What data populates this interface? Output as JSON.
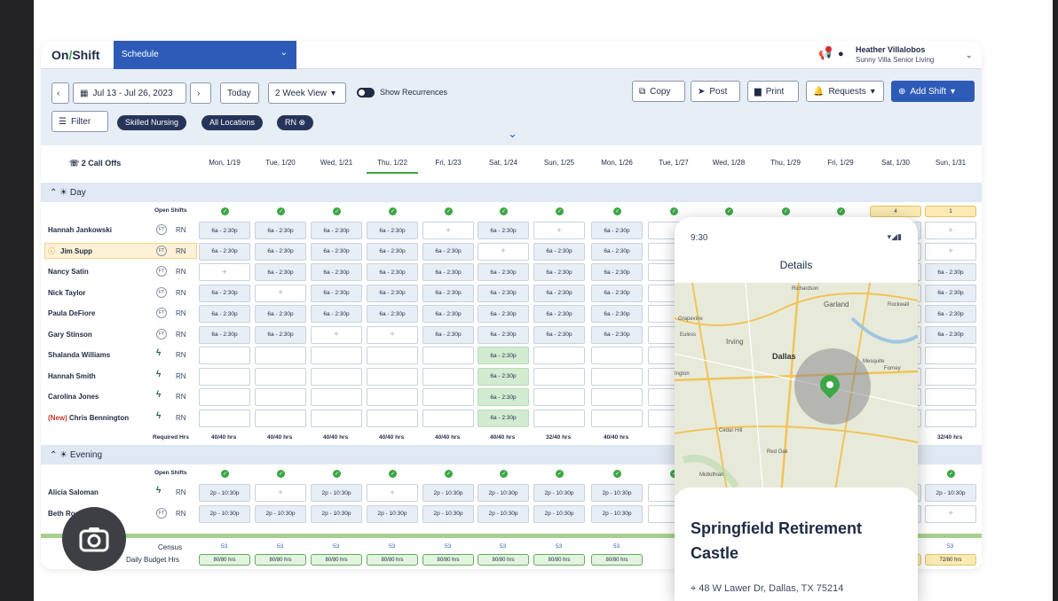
{
  "app": {
    "logo_left": "On",
    "logo_slash": "/",
    "logo_right": "Shift",
    "module": "Schedule"
  },
  "user": {
    "name": "Heather Villalobos",
    "location": "Sunny Villa Senior Living"
  },
  "toolbar": {
    "date_range": "Jul 13 - Jul 26, 2023",
    "today": "Today",
    "view": "2 Week View",
    "show_recurrences": "Show Recurrences",
    "copy": "Copy",
    "post": "Post",
    "print": "Print",
    "requests": "Requests",
    "add_shift": "Add Shift",
    "filter": "Filter"
  },
  "filters": [
    "Skilled Nursing",
    "All Locations",
    "RN"
  ],
  "header": {
    "call_offs": "2 Call Offs",
    "days": [
      "Mon, 1/19",
      "Tue, 1/20",
      "Wed, 1/21",
      "Thu, 1/22",
      "Fri, 1/23",
      "Sat, 1/24",
      "Sun, 1/25",
      "Mon, 1/26",
      "Tue, 1/27",
      "Wed, 1/28",
      "Thu, 1/29",
      "Fri, 1/29",
      "Sat, 1/30",
      "Sun, 1/31"
    ]
  },
  "day_section": {
    "title": "Day",
    "open_shifts": "Open Shifts",
    "open_counts": [
      "4",
      "1"
    ],
    "required_hrs_label": "Required Hrs",
    "staff": [
      {
        "name": "Hannah Jankowski",
        "type": "FT",
        "role": "RN",
        "cells": [
          "6a - 2:30p",
          "6a - 2:30p",
          "6a - 2:30p",
          "6a - 2:30p",
          "+",
          "6a - 2:30p",
          "+",
          "6a - 2:30p",
          "",
          "",
          "",
          "",
          "6a - 2:30p",
          "+"
        ]
      },
      {
        "name": "Jim Supp",
        "type": "FT",
        "role": "RN",
        "cells": [
          "6a - 2:30p",
          "6a - 2:30p",
          "6a - 2:30p",
          "6a - 2:30p",
          "6a - 2:30p",
          "+",
          "6a - 2:30p",
          "6a - 2:30p",
          "",
          "",
          "",
          "",
          "+",
          "+"
        ]
      },
      {
        "name": "Nancy Satin",
        "type": "FT",
        "role": "RN",
        "cells": [
          "+",
          "6a - 2:30p",
          "6a - 2:30p",
          "6a - 2:30p",
          "6a - 2:30p",
          "6a - 2:30p",
          "6a - 2:30p",
          "6a - 2:30p",
          "",
          "",
          "",
          "",
          "+",
          "6a - 2:30p"
        ]
      },
      {
        "name": "Nick Taylor",
        "type": "FT",
        "role": "RN",
        "cells": [
          "6a - 2:30p",
          "+",
          "6a - 2:30p",
          "6a - 2:30p",
          "6a - 2:30p",
          "6a - 2:30p",
          "6a - 2:30p",
          "6a - 2:30p",
          "",
          "",
          "",
          "",
          "+",
          "6a - 2:30p"
        ]
      },
      {
        "name": "Paula DeFiore",
        "type": "FT",
        "role": "RN",
        "cells": [
          "6a - 2:30p",
          "6a - 2:30p",
          "6a - 2:30p",
          "6a - 2:30p",
          "6a - 2:30p",
          "6a - 2:30p",
          "6a - 2:30p",
          "6a - 2:30p",
          "",
          "",
          "",
          "",
          "+",
          "6a - 2:30p"
        ]
      },
      {
        "name": "Gary Stinson",
        "type": "FT",
        "role": "RN",
        "cells": [
          "6a - 2:30p",
          "6a - 2:30p",
          "+",
          "+",
          "6a - 2:30p",
          "6a - 2:30p",
          "6a - 2:30p",
          "6a - 2:30p",
          "",
          "",
          "",
          "",
          "+",
          "6a - 2:30p"
        ]
      },
      {
        "name": "Shalanda Williams",
        "type": "",
        "role": "RN",
        "cells": [
          "",
          "",
          "",
          "",
          "",
          "6a - 2:30p",
          "",
          "",
          "",
          "",
          "",
          "",
          "",
          ""
        ]
      },
      {
        "name": "Hannah Smith",
        "type": "",
        "role": "RN",
        "cells": [
          "",
          "",
          "",
          "",
          "",
          "6a - 2:30p",
          "",
          "",
          "",
          "",
          "",
          "",
          "",
          ""
        ]
      },
      {
        "name": "Carolina Jones",
        "type": "",
        "role": "RN",
        "cells": [
          "",
          "",
          "",
          "",
          "",
          "6a - 2:30p",
          "",
          "",
          "",
          "",
          "",
          "",
          "",
          ""
        ]
      },
      {
        "name": "Chris Bennington",
        "prefix": "(New)",
        "type": "",
        "role": "RN",
        "cells": [
          "",
          "",
          "",
          "",
          "",
          "6a - 2:30p",
          "",
          "",
          "",
          "",
          "",
          "",
          "",
          ""
        ]
      }
    ],
    "required": [
      "40/40 hrs",
      "40/40 hrs",
      "40/40 hrs",
      "40/40 hrs",
      "40/40 hrs",
      "40/40 hrs",
      "32/40 hrs",
      "40/40 hrs",
      "",
      "",
      "",
      "",
      "8/40 hrs",
      "32/40 hrs"
    ]
  },
  "evening_section": {
    "title": "Evening",
    "open_shifts": "Open Shifts",
    "staff": [
      {
        "name": "Alicia Saloman",
        "type": "",
        "role": "RN",
        "cells": [
          "2p - 10:30p",
          "+",
          "2p - 10:30p",
          "+",
          "2p - 10:30p",
          "2p - 10:30p",
          "2p - 10:30p",
          "2p - 10:30p",
          "",
          "",
          "",
          "",
          "2p - 10:30p",
          "2p - 10:30p"
        ]
      },
      {
        "name": "Beth Rogers",
        "type": "FT",
        "role": "RN",
        "cells": [
          "2p - 10:30p",
          "2p - 10:30p",
          "2p - 10:30p",
          "2p - 10:30p",
          "2p - 10:30p",
          "2p - 10:30p",
          "2p - 10:30p",
          "2p - 10:30p",
          "",
          "",
          "",
          "",
          "2p - 10:30p",
          "+"
        ]
      }
    ]
  },
  "footer": {
    "census_label": "Census",
    "budget_label": "Daily Budget Hrs",
    "census": [
      "53",
      "53",
      "53",
      "53",
      "53",
      "53",
      "53",
      "53",
      "",
      "",
      "",
      "",
      "53",
      "53"
    ],
    "budget": [
      "80/80 hrs",
      "80/80 hrs",
      "80/80 hrs",
      "80/80 hrs",
      "80/80 hrs",
      "80/80 hrs",
      "80/80 hrs",
      "80/80 hrs",
      "",
      "",
      "",
      "",
      "48/80 hrs",
      "72/80 hrs"
    ]
  },
  "phone": {
    "time": "9:30",
    "title": "Details",
    "facility": "Springfield Retirement Castle",
    "address": "48 W Lawer Dr, Dallas, TX 75214",
    "map_labels": [
      "Richardson",
      "Garland",
      "Rockwall",
      "Irving",
      "Dallas",
      "Mesquite",
      "Forney",
      "Grapevine",
      "Euless",
      "Cedar Hill",
      "Red Oak",
      "Midlothian",
      "Ington"
    ]
  }
}
